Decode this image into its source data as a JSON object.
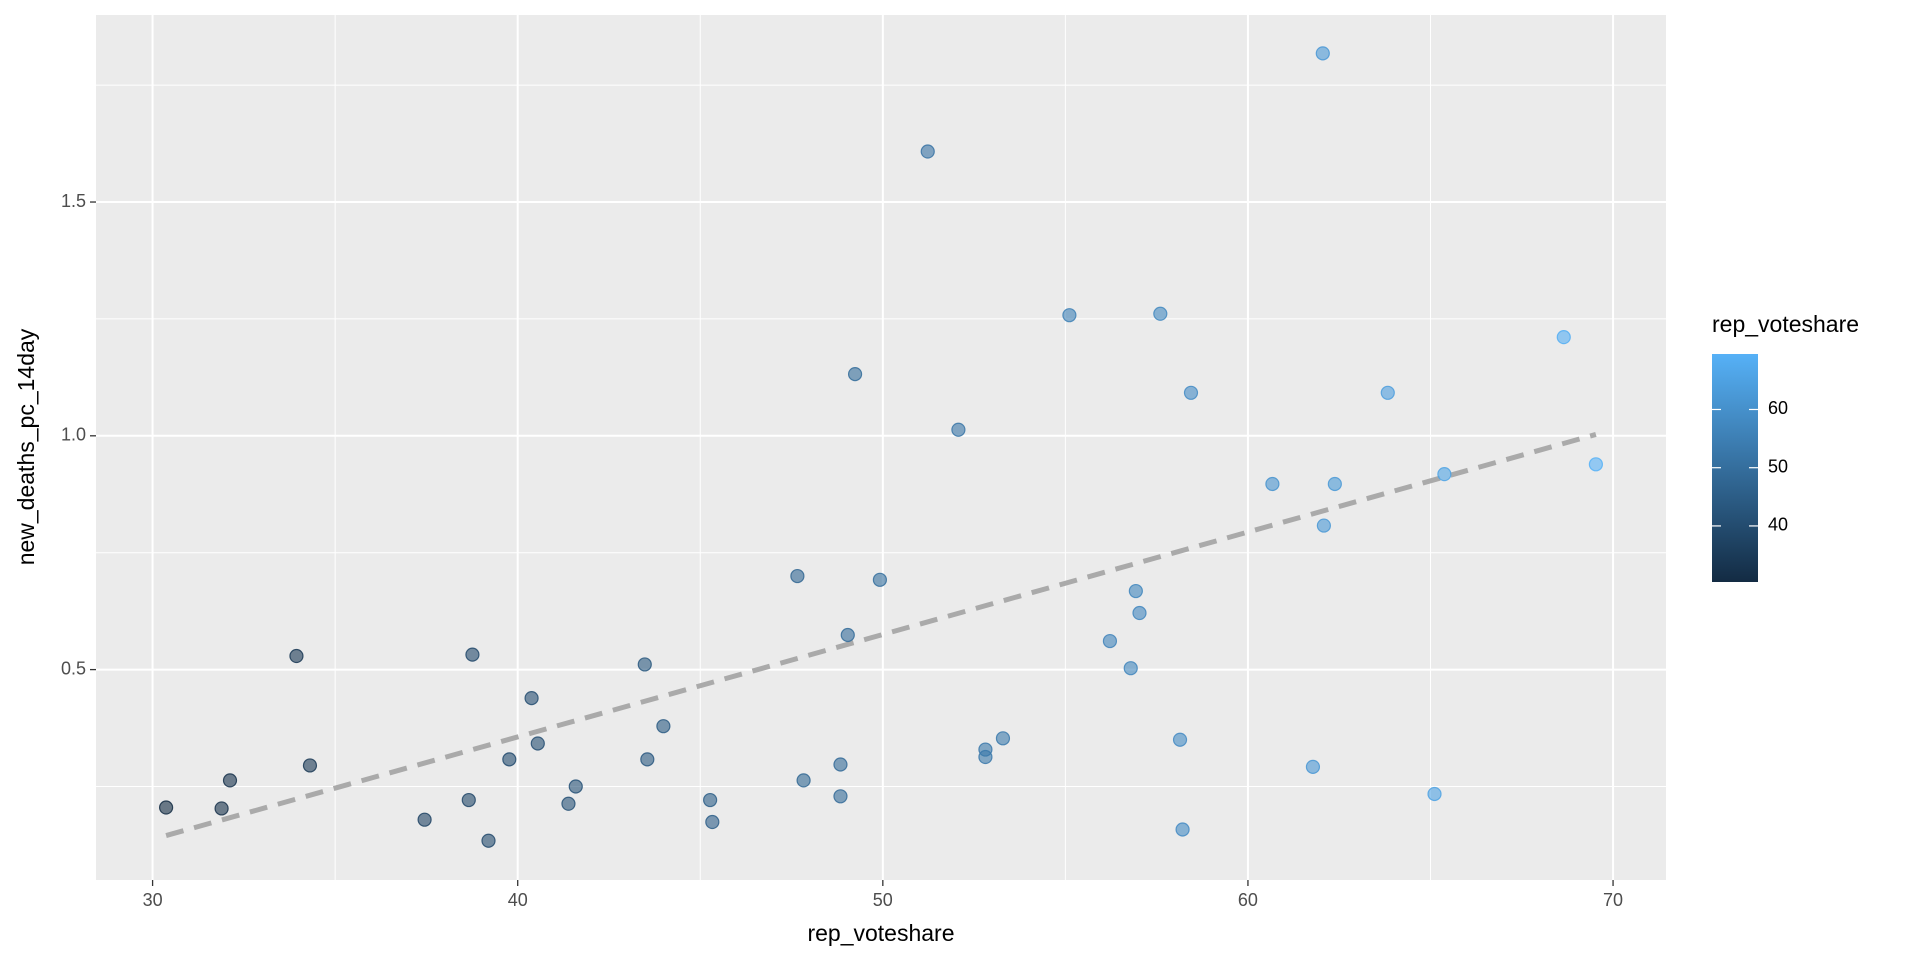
{
  "chart_data": {
    "type": "scatter",
    "x_label": "rep_voteshare",
    "y_label": "new_deaths_pc_14day",
    "x": [
      30.37,
      31.89,
      32.12,
      33.94,
      34.31,
      37.45,
      38.66,
      38.76,
      39.2,
      39.77,
      40.38,
      40.55,
      41.39,
      41.59,
      43.48,
      43.55,
      43.99,
      45.27,
      45.33,
      47.66,
      47.83,
      48.84,
      48.84,
      49.04,
      49.24,
      49.92,
      51.23,
      52.07,
      52.81,
      52.81,
      53.29,
      55.11,
      56.22,
      56.79,
      56.93,
      57.03,
      57.6,
      58.14,
      58.21,
      58.44,
      60.67,
      61.78,
      62.05,
      62.08,
      62.38,
      63.83,
      65.11,
      65.38,
      68.65,
      69.53
    ],
    "values": [
      0.205,
      0.203,
      0.263,
      0.529,
      0.295,
      0.179,
      0.221,
      0.532,
      0.134,
      0.308,
      0.439,
      0.342,
      0.213,
      0.25,
      0.511,
      0.308,
      0.379,
      0.221,
      0.174,
      0.7,
      0.263,
      0.297,
      0.229,
      0.574,
      1.132,
      0.692,
      1.608,
      1.013,
      0.329,
      0.313,
      0.353,
      1.258,
      0.561,
      0.503,
      0.668,
      0.621,
      1.261,
      0.35,
      0.158,
      1.092,
      0.897,
      0.292,
      1.818,
      0.808,
      0.897,
      1.092,
      0.234,
      0.918,
      1.211,
      0.939
    ],
    "xlim": [
      28.45,
      71.45
    ],
    "ylim": [
      0.05,
      1.9
    ],
    "xticks": [
      30,
      40,
      50,
      60,
      70
    ],
    "yticks": [
      0.5,
      {
        "value": 1,
        "label": "1.0"
      },
      1.5
    ],
    "grid": true,
    "trend_line": {
      "x": [
        30.37,
        69.53
      ],
      "y": [
        0.145,
        1.003
      ],
      "color": "#aaaaaa"
    },
    "color_scale": {
      "title": "rep_voteshare",
      "low": "#132B43",
      "high": "#56B1F7",
      "limits": [
        30.37,
        69.53
      ],
      "ticks": [
        40,
        50,
        60
      ]
    }
  }
}
